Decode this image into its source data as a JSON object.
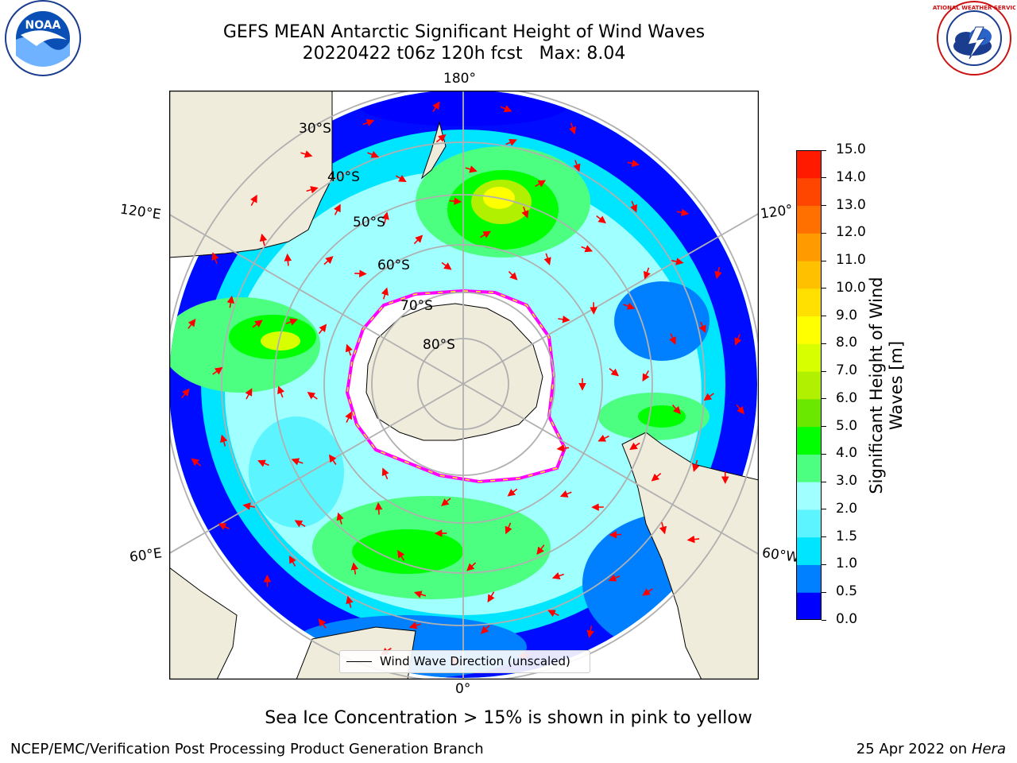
{
  "header": {
    "title": "GEFS MEAN Antarctic Significant Height of Wind Waves",
    "subtitle": "20220422 t06z 120h fcst   Max: 8.04"
  },
  "logos": {
    "left": {
      "icon": "noaa-logo",
      "text": "NOAA"
    },
    "right": {
      "icon": "national-weather-service-logo",
      "text": "NATIONAL WEATHER SERVICE"
    }
  },
  "map": {
    "projection": "south-polar-stereographic",
    "longitude_labels": {
      "top": "180°",
      "bottom": "0°",
      "upper_left": "120°E",
      "lower_left": "60°E",
      "upper_right": "120°",
      "lower_right": "60°W"
    },
    "latitude_labels": [
      "30°S",
      "40°S",
      "50°S",
      "60°S",
      "70°S",
      "80°S"
    ],
    "legend_text": "Wind Wave Direction (unscaled)",
    "arrow_color": "#ff0000",
    "ice_edge_colors": [
      "#ff00ff",
      "#ffff00",
      "#ffa500"
    ],
    "land_color": "#efecdc",
    "max_value": 8.04
  },
  "colorbar": {
    "label_line1": "Significant Height of Wind",
    "label_line2": "Waves [m]",
    "levels": [
      0.0,
      0.5,
      1.0,
      1.5,
      2.0,
      3.0,
      4.0,
      5.0,
      6.0,
      7.0,
      8.0,
      9.0,
      10.0,
      11.0,
      12.0,
      13.0,
      14.0,
      15.0
    ],
    "tick_labels": [
      "0.0",
      "0.5",
      "1.0",
      "1.5",
      "2.0",
      "3.0",
      "4.0",
      "5.0",
      "6.0",
      "7.0",
      "8.0",
      "9.0",
      "10.0",
      "11.0",
      "12.0",
      "13.0",
      "14.0",
      "15.0"
    ],
    "colors": [
      "#0000ff",
      "#0080ff",
      "#00e5ff",
      "#5cf4ff",
      "#a0ffff",
      "#4cff80",
      "#00ff00",
      "#6ae800",
      "#b0f000",
      "#d8ff00",
      "#ffff00",
      "#ffe000",
      "#ffc000",
      "#ff9a00",
      "#ff7000",
      "#ff4600",
      "#ff1a00"
    ]
  },
  "caption": "Sea Ice Concentration > 15% is shown in pink to yellow",
  "footer": {
    "left": "NCEP/EMC/Verification Post Processing Product Generation Branch",
    "date": "25 Apr 2022 on ",
    "machine": "Hera"
  }
}
